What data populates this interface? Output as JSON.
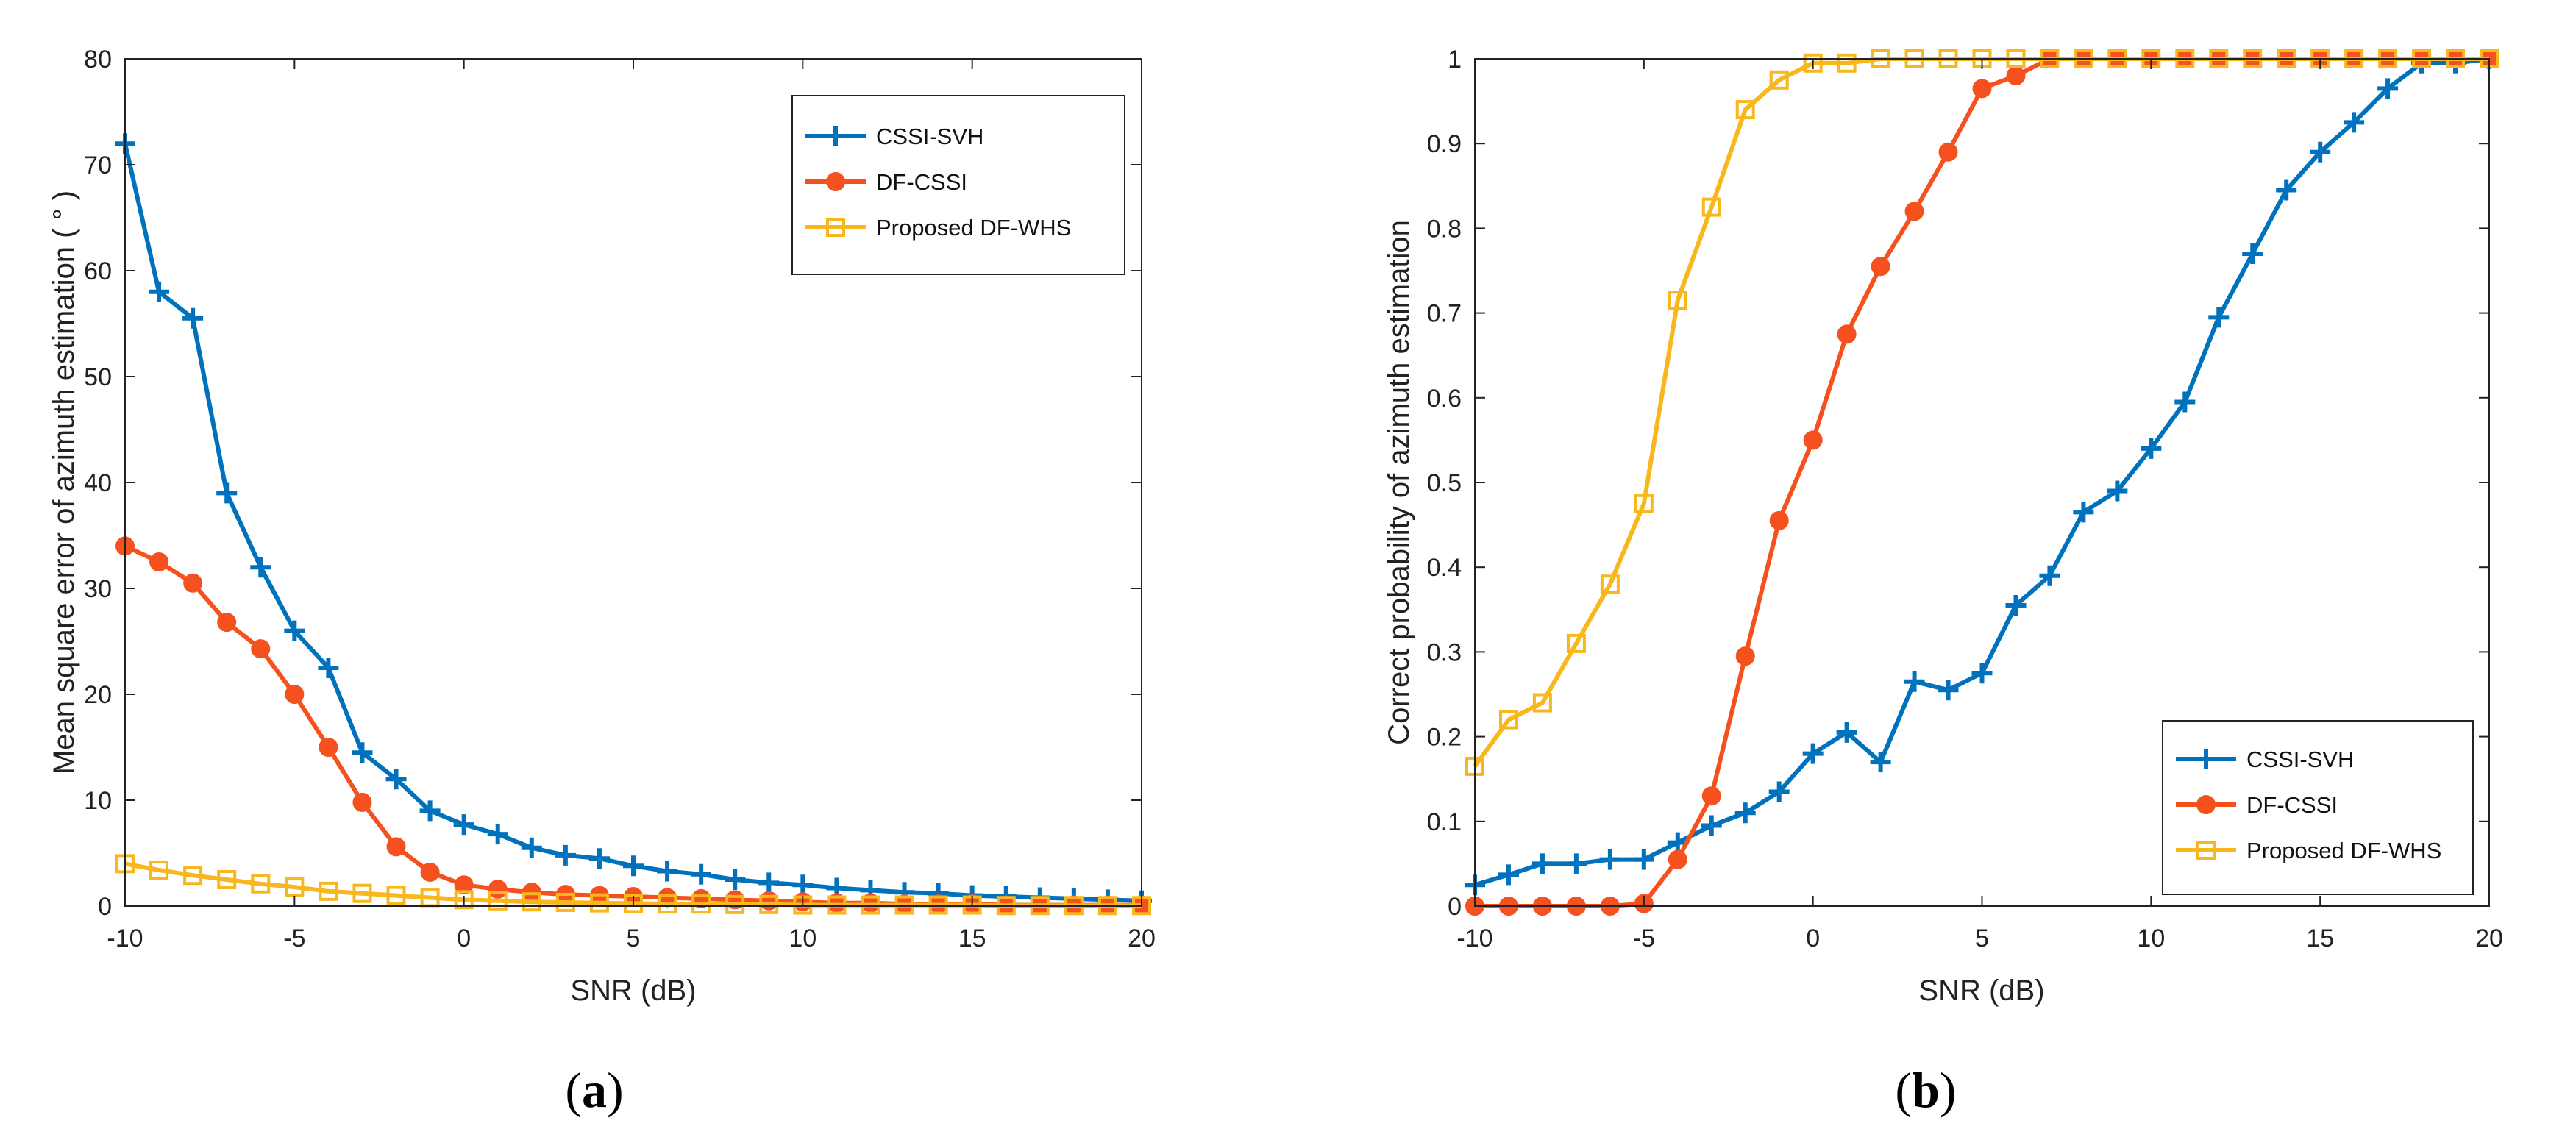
{
  "colors": {
    "CSSI-SVH": "#0072BD",
    "DF-CSSI": "#F4511E",
    "Proposed DF-WHS": "#F9B71E"
  },
  "panel_labels": [
    {
      "open": "(",
      "letter": "a",
      "close": ")"
    },
    {
      "open": "(",
      "letter": "b",
      "close": ")"
    }
  ],
  "chart_data": [
    {
      "type": "line",
      "title": "",
      "xlabel": "SNR (dB)",
      "ylabel": "Mean square error of azimuth estimation ( ° )",
      "xlim": [
        -10,
        20
      ],
      "ylim": [
        0,
        80
      ],
      "xticks": [
        -10,
        -5,
        0,
        5,
        10,
        15,
        20
      ],
      "yticks": [
        0,
        10,
        20,
        30,
        40,
        50,
        60,
        70,
        80
      ],
      "grid": false,
      "legend": "top-right",
      "x": [
        -10,
        -9,
        -8,
        -7,
        -6,
        -5,
        -4,
        -3,
        -2,
        -1,
        0,
        1,
        2,
        3,
        4,
        5,
        6,
        7,
        8,
        9,
        10,
        11,
        12,
        13,
        14,
        15,
        16,
        17,
        18,
        19,
        20
      ],
      "series": [
        {
          "name": "CSSI-SVH",
          "marker": "plus",
          "values": [
            72,
            58,
            55.5,
            39,
            32,
            26,
            22.5,
            14.5,
            12,
            9,
            7.7,
            6.8,
            5.5,
            4.8,
            4.5,
            3.8,
            3.3,
            3,
            2.5,
            2.2,
            2,
            1.7,
            1.5,
            1.3,
            1.2,
            1,
            0.9,
            0.8,
            0.7,
            0.6,
            0.5
          ]
        },
        {
          "name": "DF-CSSI",
          "marker": "circle",
          "values": [
            34,
            32.5,
            30.5,
            26.8,
            24.3,
            20,
            15,
            9.8,
            5.6,
            3.2,
            2,
            1.6,
            1.3,
            1.1,
            1,
            0.9,
            0.8,
            0.7,
            0.6,
            0.5,
            0.4,
            0.3,
            0.3,
            0.2,
            0.2,
            0.2,
            0.1,
            0.1,
            0.1,
            0.1,
            0.1
          ]
        },
        {
          "name": "Proposed DF-WHS",
          "marker": "square",
          "values": [
            4,
            3.4,
            2.9,
            2.5,
            2.1,
            1.8,
            1.4,
            1.2,
            1,
            0.8,
            0.6,
            0.5,
            0.4,
            0.35,
            0.3,
            0.25,
            0.2,
            0.2,
            0.15,
            0.15,
            0.1,
            0.1,
            0.1,
            0.1,
            0.1,
            0.1,
            0.05,
            0.05,
            0.05,
            0.05,
            0.05
          ]
        }
      ]
    },
    {
      "type": "line",
      "title": "",
      "xlabel": "SNR (dB)",
      "ylabel": "Correct probability of azimuth estimation",
      "xlim": [
        -10,
        20
      ],
      "ylim": [
        0,
        1
      ],
      "xticks": [
        -10,
        -5,
        0,
        5,
        10,
        15,
        20
      ],
      "yticks": [
        0,
        0.1,
        0.2,
        0.3,
        0.4,
        0.5,
        0.6,
        0.7,
        0.8,
        0.9,
        1
      ],
      "grid": false,
      "legend": "bottom-right",
      "x": [
        -10,
        -9,
        -8,
        -7,
        -6,
        -5,
        -4,
        -3,
        -2,
        -1,
        0,
        1,
        2,
        3,
        4,
        5,
        6,
        7,
        8,
        9,
        10,
        11,
        12,
        13,
        14,
        15,
        16,
        17,
        18,
        19,
        20
      ],
      "series": [
        {
          "name": "CSSI-SVH",
          "marker": "plus",
          "values": [
            0.025,
            0.037,
            0.05,
            0.05,
            0.055,
            0.055,
            0.075,
            0.095,
            0.11,
            0.135,
            0.18,
            0.205,
            0.17,
            0.265,
            0.255,
            0.275,
            0.355,
            0.39,
            0.465,
            0.49,
            0.54,
            0.595,
            0.695,
            0.77,
            0.845,
            0.89,
            0.925,
            0.965,
            0.995,
            0.995,
            1
          ]
        },
        {
          "name": "DF-CSSI",
          "marker": "circle",
          "values": [
            0,
            0,
            0,
            0,
            0,
            0.003,
            0.055,
            0.13,
            0.295,
            0.455,
            0.55,
            0.675,
            0.755,
            0.82,
            0.89,
            0.965,
            0.98,
            1,
            1,
            1,
            1,
            1,
            1,
            1,
            1,
            1,
            1,
            1,
            1,
            1,
            1
          ]
        },
        {
          "name": "Proposed DF-WHS",
          "marker": "square",
          "values": [
            0.165,
            0.22,
            0.24,
            0.31,
            0.38,
            0.475,
            0.715,
            0.825,
            0.94,
            0.975,
            0.995,
            0.995,
            1,
            1,
            1,
            1,
            1,
            1,
            1,
            1,
            1,
            1,
            1,
            1,
            1,
            1,
            1,
            1,
            1,
            1,
            1
          ]
        }
      ]
    }
  ]
}
